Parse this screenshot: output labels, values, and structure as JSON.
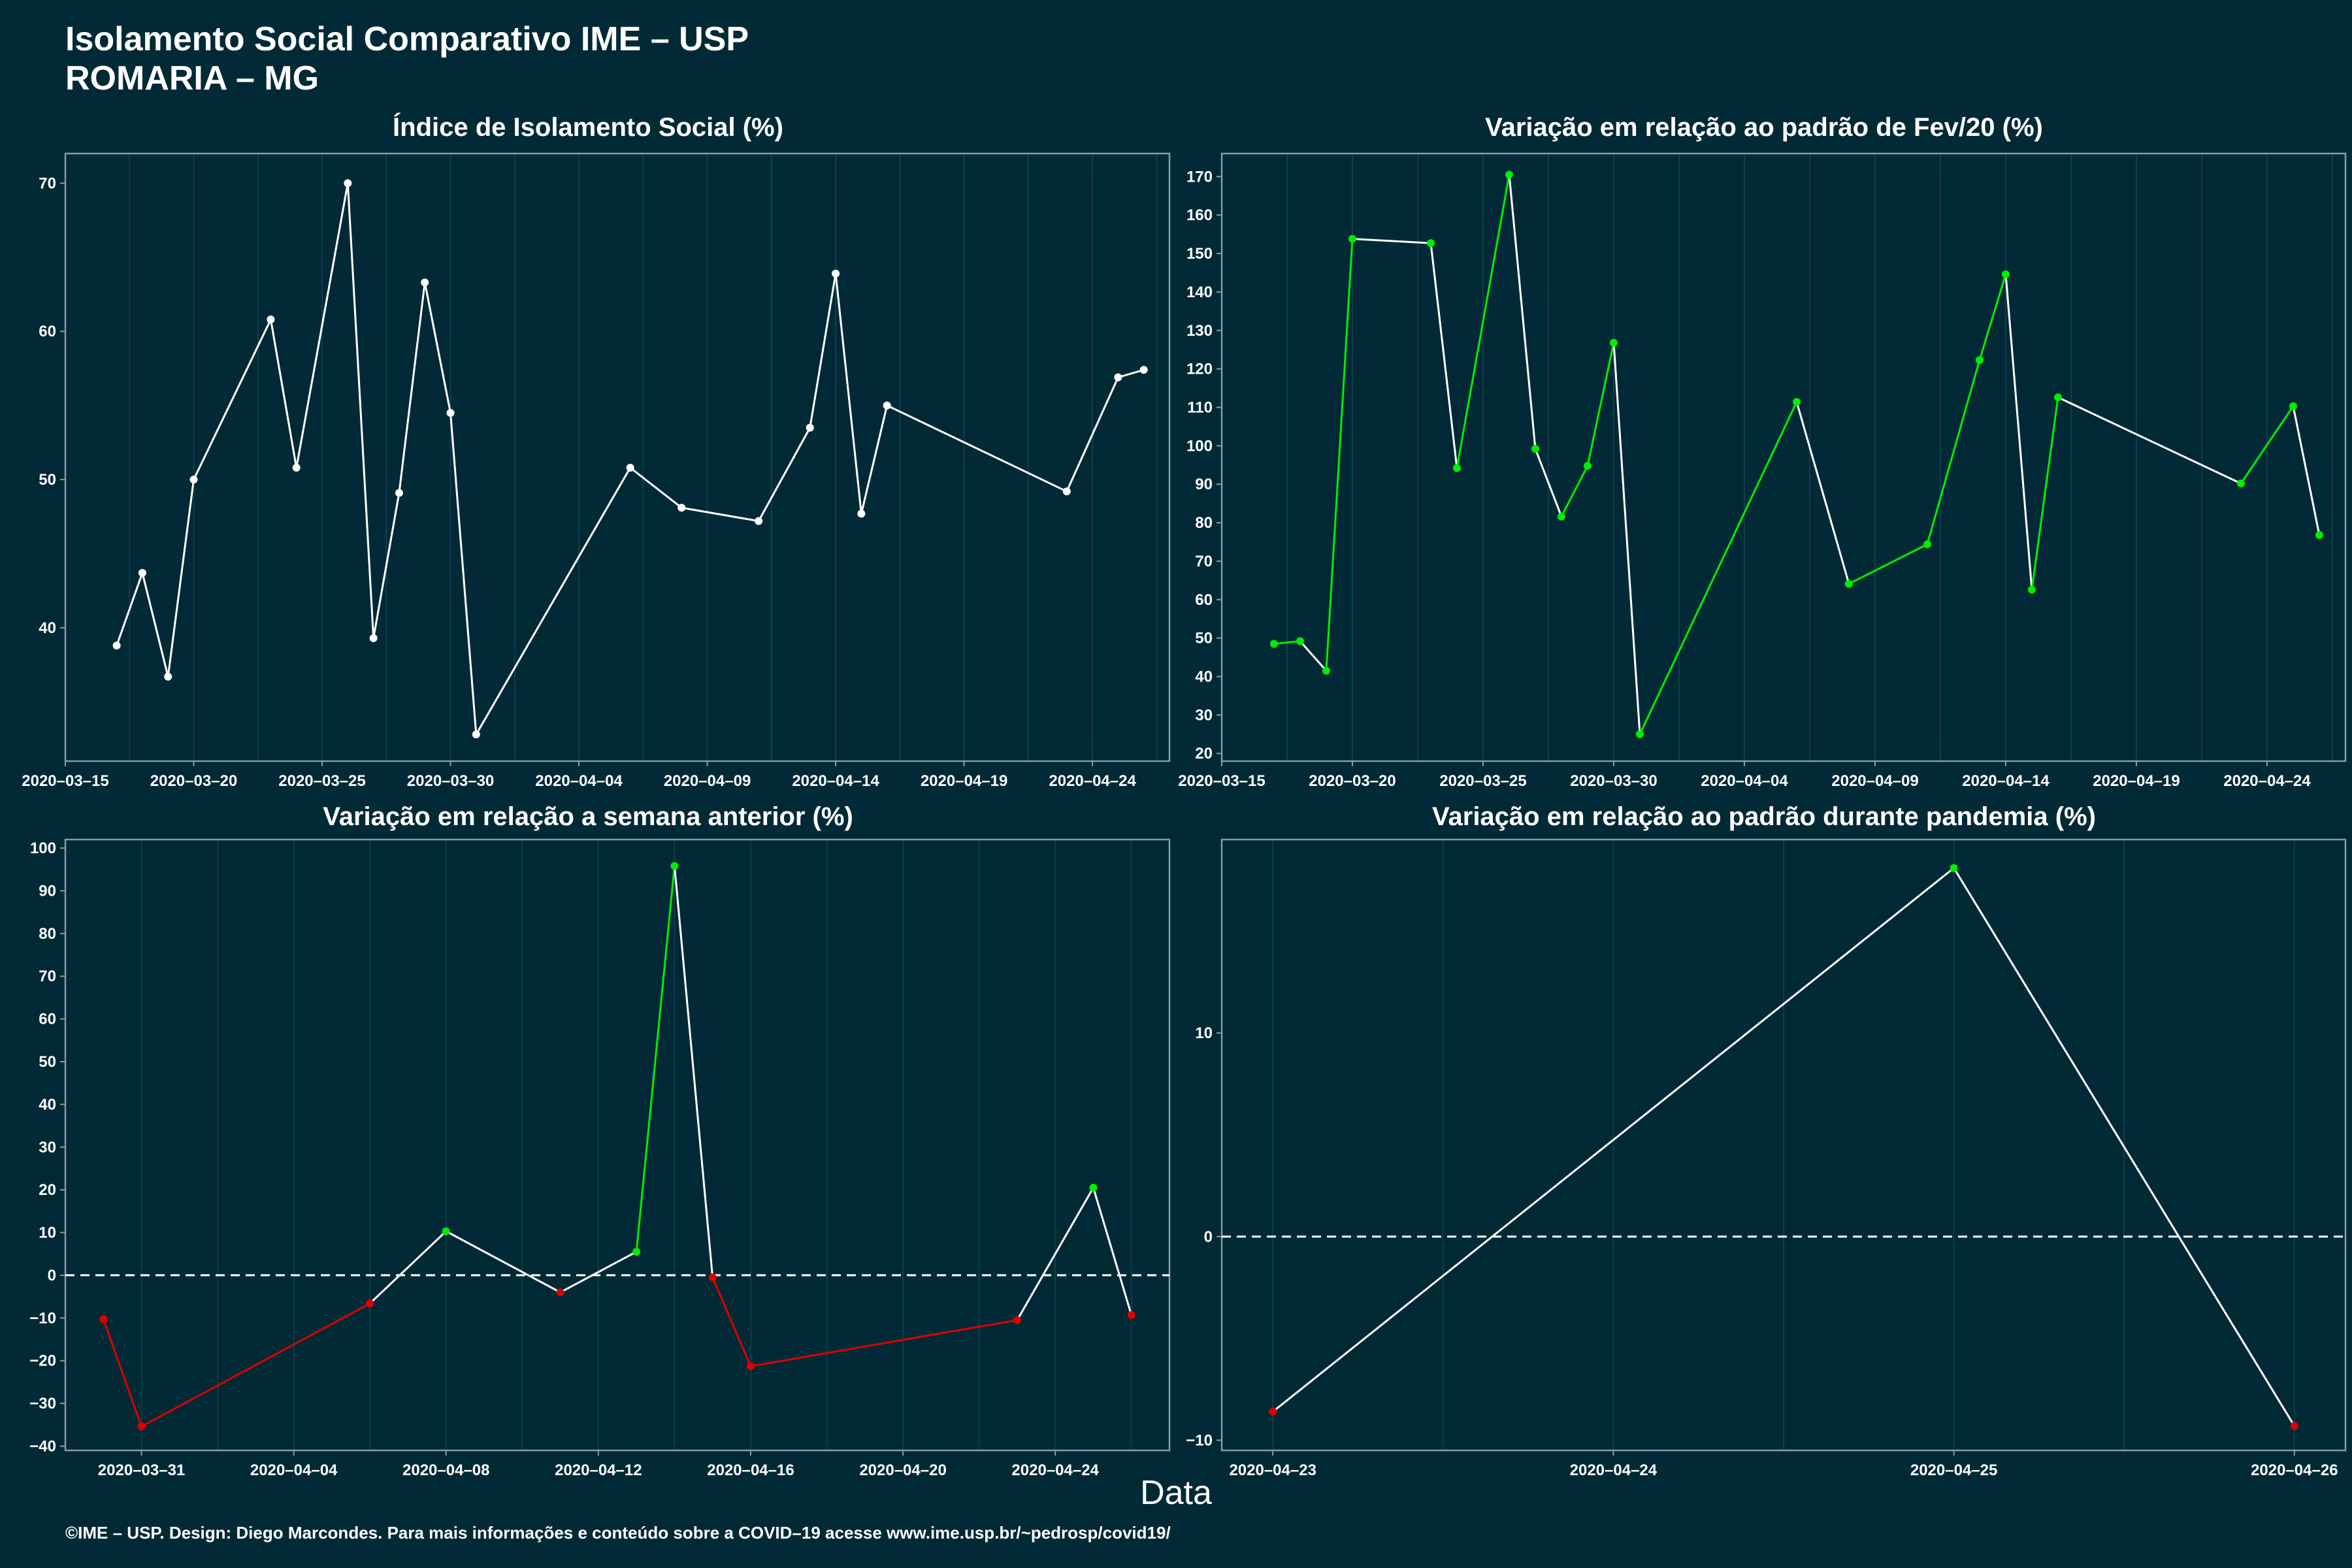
{
  "title_line1": "Isolamento Social Comparativo IME – USP",
  "title_line2": "ROMARIA – MG",
  "xlabel": "Data",
  "footer": "©IME – USP. Design: Diego Marcondes. Para mais informações e conteúdo sobre a COVID–19 acesse www.ime.usp.br/~pedrosp/covid19/",
  "colors": {
    "background": "#022a36",
    "line": "#ffffff",
    "up": "#00ee00",
    "down": "#dd0000",
    "grid": "#0f3f4b",
    "border": "#8a9ba0"
  },
  "chart_data": [
    {
      "type": "line",
      "title": "Índice de Isolamento Social (%)",
      "color_mode": "white",
      "x": [
        "2020-03-17",
        "2020-03-18",
        "2020-03-19",
        "2020-03-20",
        "2020-03-23",
        "2020-03-24",
        "2020-03-26",
        "2020-03-27",
        "2020-03-28",
        "2020-03-29",
        "2020-03-30",
        "2020-03-31",
        "2020-04-06",
        "2020-04-08",
        "2020-04-11",
        "2020-04-13",
        "2020-04-14",
        "2020-04-15",
        "2020-04-16",
        "2020-04-23",
        "2020-04-25",
        "2020-04-26"
      ],
      "y": [
        38.8,
        43.7,
        36.7,
        50.0,
        60.8,
        50.8,
        70.0,
        39.3,
        49.1,
        63.3,
        54.5,
        32.8,
        50.8,
        48.1,
        47.2,
        53.5,
        63.9,
        47.7,
        55.0,
        49.2,
        56.9,
        57.4
      ],
      "xlim": [
        "2020-03-15",
        "2020-04-27"
      ],
      "ylim": [
        31,
        72
      ],
      "xticks": [
        "2020-03-15",
        "2020-03-20",
        "2020-03-25",
        "2020-03-30",
        "2020-04-04",
        "2020-04-09",
        "2020-04-14",
        "2020-04-19",
        "2020-04-24"
      ],
      "xtick_labels": [
        "2020–03–15",
        "2020–03–20",
        "2020–03–25",
        "2020–03–30",
        "2020–04–04",
        "2020–04–09",
        "2020–04–14",
        "2020–04–19",
        "2020–04–24"
      ],
      "yticks": [
        40,
        50,
        60,
        70
      ],
      "ytick_labels": [
        "40",
        "50",
        "60",
        "70"
      ],
      "grid": true,
      "zero_line": false
    },
    {
      "type": "line",
      "title": "Variação em relação ao padrão de Fev/20 (%)",
      "color_mode": "updown",
      "x": [
        "2020-03-17",
        "2020-03-18",
        "2020-03-19",
        "2020-03-20",
        "2020-03-23",
        "2020-03-24",
        "2020-03-26",
        "2020-03-27",
        "2020-03-28",
        "2020-03-29",
        "2020-03-30",
        "2020-03-31",
        "2020-04-06",
        "2020-04-08",
        "2020-04-11",
        "2020-04-13",
        "2020-04-14",
        "2020-04-15",
        "2020-04-16",
        "2020-04-23",
        "2020-04-25",
        "2020-04-26"
      ],
      "y": [
        48.5,
        49.2,
        41.5,
        153.8,
        152.7,
        94.2,
        170.5,
        99.2,
        81.6,
        94.8,
        126.8,
        25.0,
        111.4,
        64.1,
        74.4,
        122.3,
        144.6,
        62.6,
        112.6,
        90.2,
        110.3,
        76.8
      ],
      "xlim": [
        "2020-03-15",
        "2020-04-27"
      ],
      "ylim": [
        18,
        176
      ],
      "xticks": [
        "2020-03-15",
        "2020-03-20",
        "2020-03-25",
        "2020-03-30",
        "2020-04-04",
        "2020-04-09",
        "2020-04-14",
        "2020-04-19",
        "2020-04-24"
      ],
      "xtick_labels": [
        "2020–03–15",
        "2020–03–20",
        "2020–03–25",
        "2020–03–30",
        "2020–04–04",
        "2020–04–09",
        "2020–04–14",
        "2020–04–19",
        "2020–04–24"
      ],
      "yticks": [
        20,
        30,
        40,
        50,
        60,
        70,
        80,
        90,
        100,
        110,
        120,
        130,
        140,
        150,
        160,
        170
      ],
      "ytick_labels": [
        "20",
        "30",
        "40",
        "50",
        "60",
        "70",
        "80",
        "90",
        "100",
        "110",
        "120",
        "130",
        "140",
        "150",
        "160",
        "170"
      ],
      "grid": true,
      "zero_line": false
    },
    {
      "type": "line",
      "title": "Variação em relação a semana anterior (%)",
      "color_mode": "sign",
      "x": [
        "2020-03-30",
        "2020-03-31",
        "2020-04-06",
        "2020-04-08",
        "2020-04-11",
        "2020-04-13",
        "2020-04-14",
        "2020-04-15",
        "2020-04-16",
        "2020-04-23",
        "2020-04-25",
        "2020-04-26"
      ],
      "y": [
        -10.3,
        -35.4,
        -6.6,
        10.3,
        -4.0,
        5.5,
        95.8,
        -0.5,
        -21.3,
        -10.5,
        20.5,
        -9.3
      ],
      "xlim": [
        "2020-03-29",
        "2020-04-27"
      ],
      "ylim": [
        -41,
        102
      ],
      "xticks": [
        "2020-03-31",
        "2020-04-04",
        "2020-04-08",
        "2020-04-12",
        "2020-04-16",
        "2020-04-20",
        "2020-04-24"
      ],
      "xtick_labels": [
        "2020–03–31",
        "2020–04–04",
        "2020–04–08",
        "2020–04–12",
        "2020–04–16",
        "2020–04–20",
        "2020–04–24"
      ],
      "yticks": [
        -40,
        -30,
        -20,
        -10,
        0,
        10,
        20,
        30,
        40,
        50,
        60,
        70,
        80,
        90,
        100
      ],
      "ytick_labels": [
        "−40",
        "−30",
        "−20",
        "−10",
        "0",
        "10",
        "20",
        "30",
        "40",
        "50",
        "60",
        "70",
        "80",
        "90",
        "100"
      ],
      "grid": true,
      "zero_line": true
    },
    {
      "type": "line",
      "title": "Variação em relação ao padrão durante pandemia (%)",
      "color_mode": "sign",
      "x": [
        "2020-04-23",
        "2020-04-25",
        "2020-04-26"
      ],
      "y": [
        -8.6,
        18.1,
        -9.3
      ],
      "xlim": [
        "2020-04-22.85",
        "2020-04-26.15"
      ],
      "ylim": [
        -10.5,
        19.5
      ],
      "xticks": [
        "2020-04-23",
        "2020-04-24",
        "2020-04-25",
        "2020-04-26"
      ],
      "xtick_labels": [
        "2020–04–23",
        "2020–04–24",
        "2020–04–25",
        "2020–04–26"
      ],
      "yticks": [
        -10,
        0,
        10
      ],
      "ytick_labels": [
        "−10",
        "0",
        "10"
      ],
      "grid": true,
      "zero_line": true
    }
  ]
}
